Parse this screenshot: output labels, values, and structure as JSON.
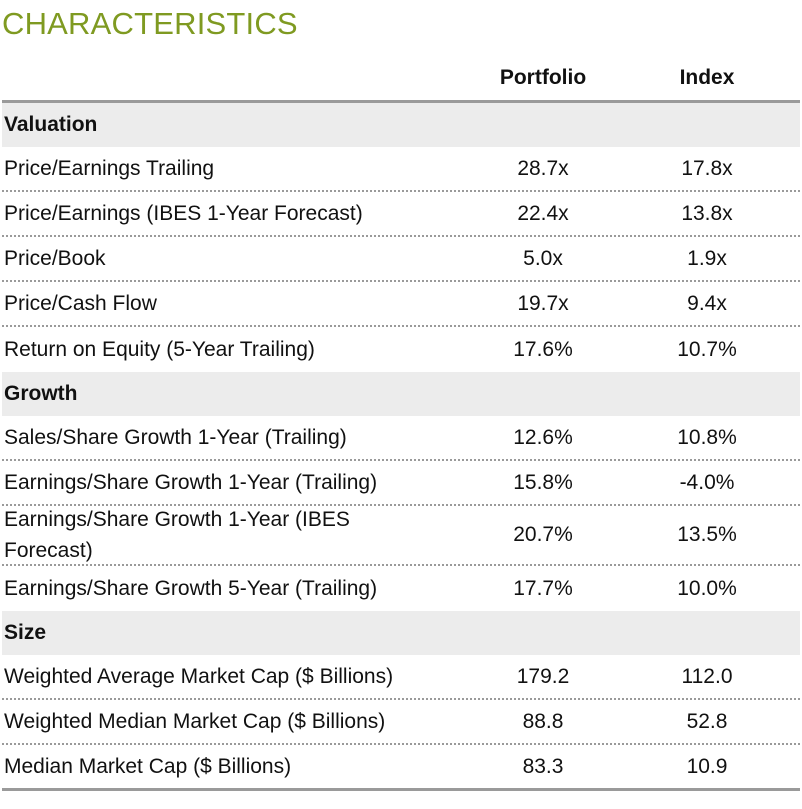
{
  "title": "CHARACTERISTICS",
  "columns": {
    "portfolio": "Portfolio",
    "index": "Index"
  },
  "sections": [
    {
      "name": "Valuation",
      "rows": [
        {
          "label": "Price/Earnings Trailing",
          "portfolio": "28.7x",
          "index": "17.8x"
        },
        {
          "label": "Price/Earnings (IBES 1-Year Forecast)",
          "portfolio": "22.4x",
          "index": "13.8x"
        },
        {
          "label": "Price/Book",
          "portfolio": "5.0x",
          "index": "1.9x"
        },
        {
          "label": "Price/Cash Flow",
          "portfolio": "19.7x",
          "index": "9.4x"
        },
        {
          "label": "Return on Equity (5-Year Trailing)",
          "portfolio": "17.6%",
          "index": "10.7%"
        }
      ]
    },
    {
      "name": "Growth",
      "rows": [
        {
          "label": "Sales/Share Growth 1-Year (Trailing)",
          "portfolio": "12.6%",
          "index": "10.8%"
        },
        {
          "label": "Earnings/Share Growth 1-Year (Trailing)",
          "portfolio": "15.8%",
          "index": "-4.0%"
        },
        {
          "label": "Earnings/Share Growth 1-Year (IBES Forecast)",
          "portfolio": "20.7%",
          "index": "13.5%"
        },
        {
          "label": "Earnings/Share Growth 5-Year (Trailing)",
          "portfolio": "17.7%",
          "index": "10.0%"
        }
      ]
    },
    {
      "name": "Size",
      "rows": [
        {
          "label": "Weighted Average Market Cap ($ Billions)",
          "portfolio": "179.2",
          "index": "112.0"
        },
        {
          "label": "Weighted Median Market Cap ($ Billions)",
          "portfolio": "88.8",
          "index": "52.8"
        },
        {
          "label": "Median Market Cap ($ Billions)",
          "portfolio": "83.3",
          "index": "10.9"
        }
      ]
    }
  ]
}
